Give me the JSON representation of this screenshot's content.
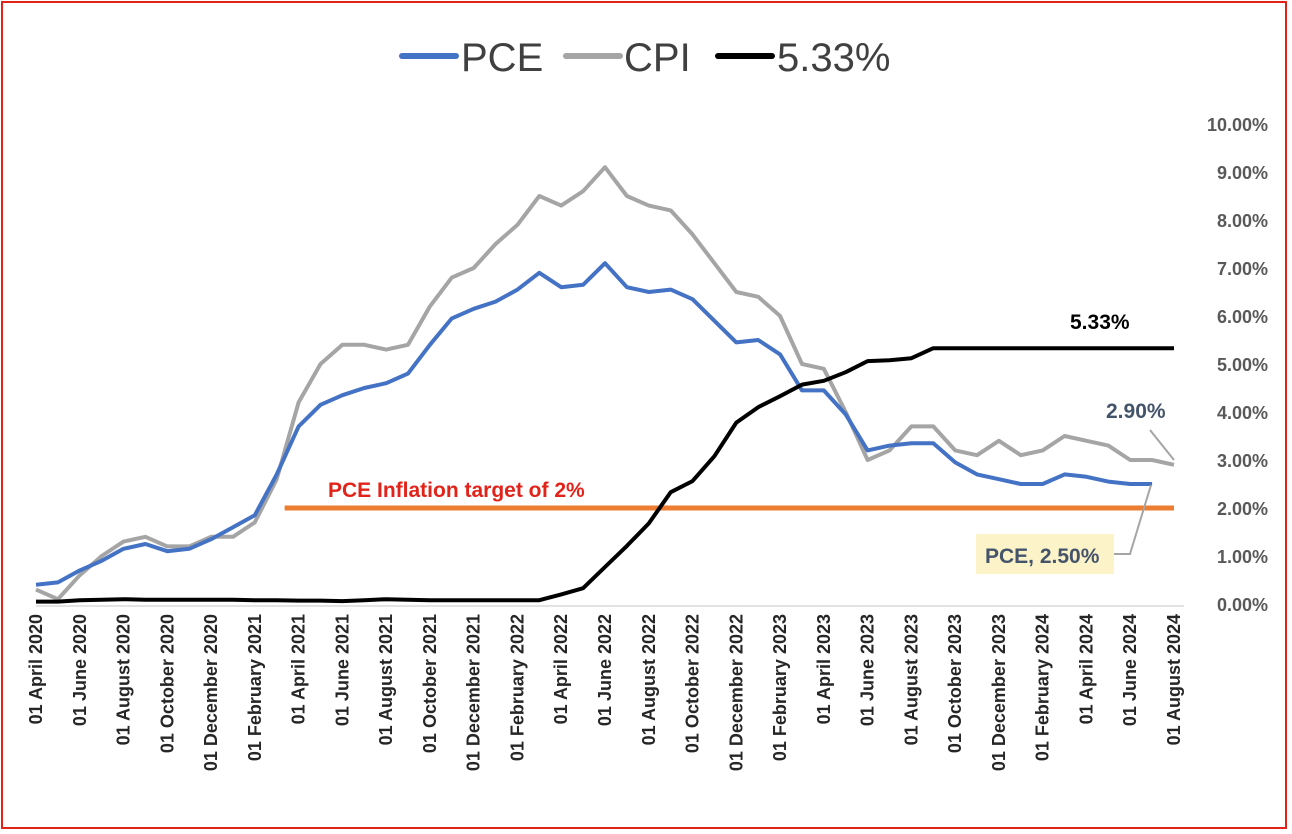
{
  "chart_data": {
    "type": "line",
    "title": "",
    "xlabel": "",
    "ylabel": "",
    "ylim": [
      0,
      10
    ],
    "y_ticks": [
      "0.00%",
      "1.00%",
      "2.00%",
      "3.00%",
      "4.00%",
      "5.00%",
      "6.00%",
      "7.00%",
      "8.00%",
      "9.00%",
      "10.00%"
    ],
    "x_tick_labels": [
      "01 April 2020",
      "01 June 2020",
      "01 August 2020",
      "01 October 2020",
      "01 December 2020",
      "01 February 2021",
      "01 April 2021",
      "01 June 2021",
      "01 August 2021",
      "01 October 2021",
      "01 December 2021",
      "01 February 2022",
      "01 April 2022",
      "01 June 2022",
      "01 August 2022",
      "01 October 2022",
      "01 December 2022",
      "01 February 2023",
      "01 April 2023",
      "01 June 2023",
      "01 August 2023",
      "01 October 2023",
      "01 December 2023",
      "01 February 2024",
      "01 April 2024",
      "01 June 2024",
      "01 August 2024"
    ],
    "legend_position": "top",
    "series": [
      {
        "name": "PCE",
        "color": "#4472c4",
        "values": [
          0.4,
          0.45,
          0.7,
          0.9,
          1.15,
          1.25,
          1.1,
          1.15,
          1.35,
          1.6,
          1.85,
          2.7,
          3.7,
          4.15,
          4.35,
          4.5,
          4.6,
          4.8,
          5.4,
          5.95,
          6.15,
          6.3,
          6.55,
          6.9,
          6.6,
          6.65,
          7.1,
          6.6,
          6.5,
          6.55,
          6.35,
          5.9,
          5.45,
          5.5,
          5.2,
          4.45,
          4.45,
          3.95,
          3.2,
          3.3,
          3.35,
          3.35,
          2.95,
          2.7,
          2.6,
          2.5,
          2.5,
          2.7,
          2.65,
          2.55,
          2.5,
          2.5
        ]
      },
      {
        "name": "CPI",
        "color": "#a5a5a5",
        "values": [
          0.3,
          0.1,
          0.6,
          1.0,
          1.3,
          1.4,
          1.2,
          1.2,
          1.4,
          1.4,
          1.7,
          2.6,
          4.2,
          5.0,
          5.4,
          5.4,
          5.3,
          5.4,
          6.2,
          6.8,
          7.0,
          7.5,
          7.9,
          8.5,
          8.3,
          8.6,
          9.1,
          8.5,
          8.3,
          8.2,
          7.7,
          7.1,
          6.5,
          6.4,
          6.0,
          5.0,
          4.9,
          4.0,
          3.0,
          3.2,
          3.7,
          3.7,
          3.2,
          3.1,
          3.4,
          3.1,
          3.2,
          3.5,
          3.4,
          3.3,
          3.0,
          3.0,
          2.9
        ]
      },
      {
        "name": "5.33%",
        "color": "#000000",
        "values": [
          0.05,
          0.05,
          0.08,
          0.09,
          0.1,
          0.09,
          0.09,
          0.09,
          0.09,
          0.09,
          0.08,
          0.08,
          0.07,
          0.07,
          0.06,
          0.08,
          0.1,
          0.09,
          0.08,
          0.08,
          0.08,
          0.08,
          0.08,
          0.08,
          0.2,
          0.33,
          0.77,
          1.21,
          1.68,
          2.33,
          2.56,
          3.08,
          3.78,
          4.1,
          4.33,
          4.57,
          4.65,
          4.83,
          5.06,
          5.08,
          5.12,
          5.33,
          5.33,
          5.33,
          5.33,
          5.33,
          5.33,
          5.33,
          5.33,
          5.33,
          5.33,
          5.33,
          5.33
        ]
      },
      {
        "name": "PCE Inflation target of 2%",
        "color": "#ed7d31",
        "x_start_index": 12,
        "x_end_index": 52,
        "value": 2.0
      }
    ],
    "annotations": {
      "fed_rate_label": "5.33%",
      "cpi_last_label": "2.90%",
      "pce_last_label": "PCE, 2.50%",
      "target_label": "PCE Inflation target of 2%"
    }
  }
}
